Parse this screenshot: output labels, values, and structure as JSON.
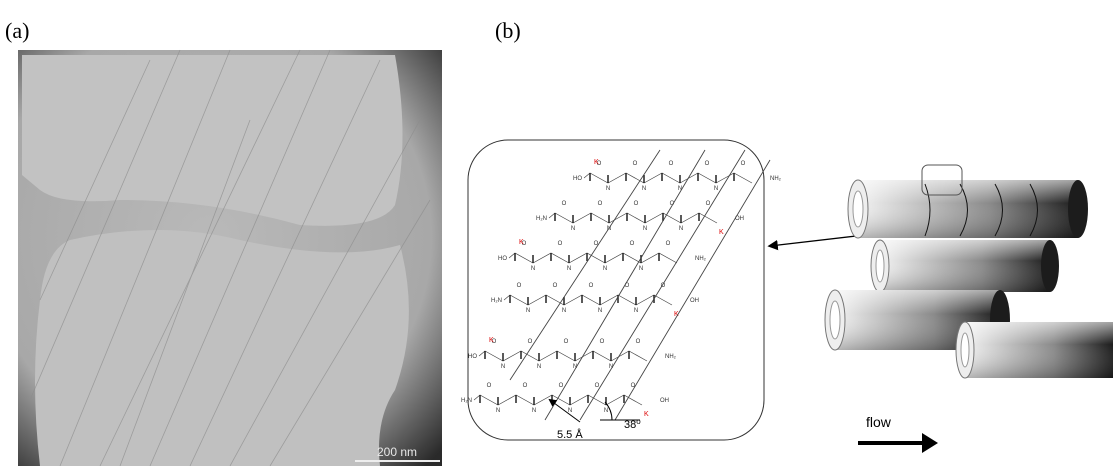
{
  "panels": [
    {
      "label": "(a)",
      "scale_bar": "200 nm"
    },
    {
      "label": "(b)",
      "backbone_atoms": [
        "N",
        "O"
      ],
      "strands": [
        {
          "start": "HO",
          "end": "NH₂",
          "lysine": "K"
        },
        {
          "start": "H₂N",
          "end": "OH",
          "lysine": "K"
        },
        {
          "start": "HO",
          "end": "NH₂",
          "lysine": "K"
        },
        {
          "start": "H₂N",
          "end": "OH",
          "lysine": "K"
        },
        {
          "start": "HO",
          "end": "NH₂",
          "lysine": "K"
        },
        {
          "start": "H₂N",
          "end": "OH",
          "lysine": "K"
        }
      ],
      "spacing": "5.5 Å",
      "angle": "38",
      "angle_unit": "o",
      "flow": "flow"
    }
  ]
}
